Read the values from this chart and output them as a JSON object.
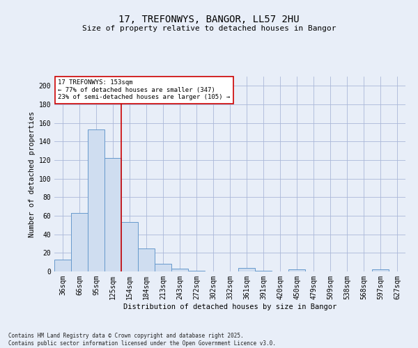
{
  "title": "17, TREFONWYS, BANGOR, LL57 2HU",
  "subtitle": "Size of property relative to detached houses in Bangor",
  "xlabel": "Distribution of detached houses by size in Bangor",
  "ylabel": "Number of detached properties",
  "bins": [
    "36sqm",
    "66sqm",
    "95sqm",
    "125sqm",
    "154sqm",
    "184sqm",
    "213sqm",
    "243sqm",
    "272sqm",
    "302sqm",
    "332sqm",
    "361sqm",
    "391sqm",
    "420sqm",
    "450sqm",
    "479sqm",
    "509sqm",
    "538sqm",
    "568sqm",
    "597sqm",
    "627sqm"
  ],
  "values": [
    13,
    63,
    153,
    122,
    53,
    25,
    8,
    3,
    1,
    0,
    0,
    4,
    1,
    0,
    2,
    0,
    0,
    0,
    0,
    2,
    0
  ],
  "bar_color": "#cfddf0",
  "bar_edge_color": "#6699cc",
  "vline_x": 3.5,
  "vline_color": "#cc0000",
  "annotation_text": "17 TREFONWYS: 153sqm\n← 77% of detached houses are smaller (347)\n23% of semi-detached houses are larger (105) →",
  "annotation_box_color": "white",
  "annotation_box_edge_color": "#cc0000",
  "ylim": [
    0,
    210
  ],
  "yticks": [
    0,
    20,
    40,
    60,
    80,
    100,
    120,
    140,
    160,
    180,
    200
  ],
  "footer": "Contains HM Land Registry data © Crown copyright and database right 2025.\nContains public sector information licensed under the Open Government Licence v3.0.",
  "bg_color": "#e8eef8",
  "plot_bg_color": "#e8eef8",
  "grid_color": "#aab8d8",
  "title_fontsize": 10,
  "subtitle_fontsize": 8,
  "ylabel_fontsize": 7.5,
  "xlabel_fontsize": 7.5,
  "tick_fontsize": 7,
  "footer_fontsize": 5.5
}
